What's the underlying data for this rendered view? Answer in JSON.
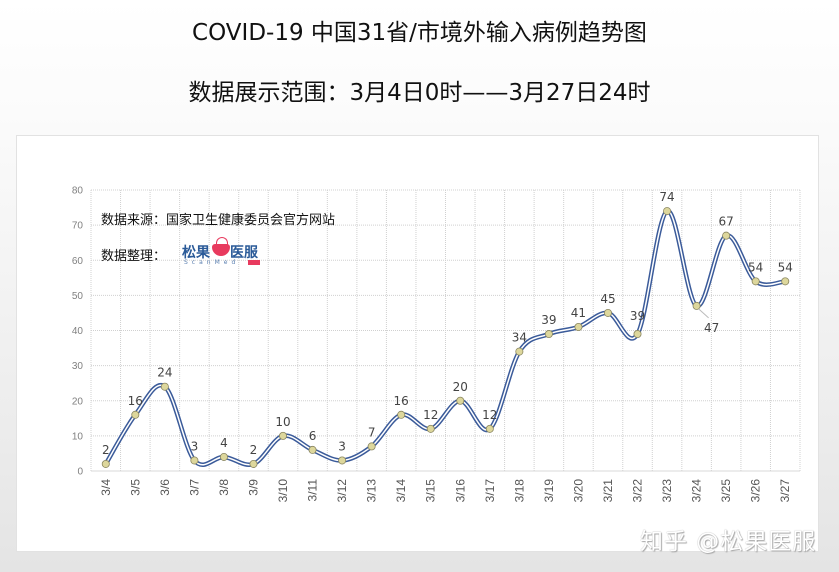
{
  "header": {
    "title": "COVID-19 中国31省/市境外输入病例趋势图",
    "subtitle": "数据展示范围：3月4日0时——3月27日24时"
  },
  "annotations": {
    "source": "数据来源：国家卫生健康委员会官方网站",
    "organizer_label": "数据整理：",
    "logo_text_left": "松果",
    "logo_text_right": "医服",
    "logo_subtext": "ScanMed"
  },
  "watermark": "知乎 @松果医服",
  "colors": {
    "line_outer": "#3b5b9a",
    "line_inner": "#ffffff",
    "marker_fill": "#ddd79c",
    "marker_stroke": "#8a8660",
    "grid": "#d0d0d0",
    "logo_accent": "#e83a5e",
    "logo_text": "#2a5a98"
  },
  "chart_data": {
    "type": "line",
    "title": "COVID-19 中国31省/市境外输入病例趋势图",
    "subtitle": "数据展示范围：3月4日0时——3月27日24时",
    "xlabel": "",
    "ylabel": "",
    "categories": [
      "3/4",
      "3/5",
      "3/6",
      "3/7",
      "3/8",
      "3/9",
      "3/10",
      "3/11",
      "3/12",
      "3/13",
      "3/14",
      "3/15",
      "3/16",
      "3/17",
      "3/18",
      "3/19",
      "3/20",
      "3/21",
      "3/22",
      "3/23",
      "3/24",
      "3/25",
      "3/26",
      "3/27"
    ],
    "series": [
      {
        "name": "境外输入病例",
        "values": [
          2,
          16,
          24,
          3,
          4,
          2,
          10,
          6,
          3,
          7,
          16,
          12,
          20,
          12,
          34,
          39,
          41,
          45,
          39,
          74,
          47,
          67,
          54,
          54
        ]
      }
    ],
    "ylim": [
      0,
      80
    ],
    "yticks": [
      0,
      10,
      20,
      30,
      40,
      50,
      60,
      70,
      80
    ],
    "grid": true,
    "legend": "none",
    "smoothed": true,
    "data_labels": true
  }
}
